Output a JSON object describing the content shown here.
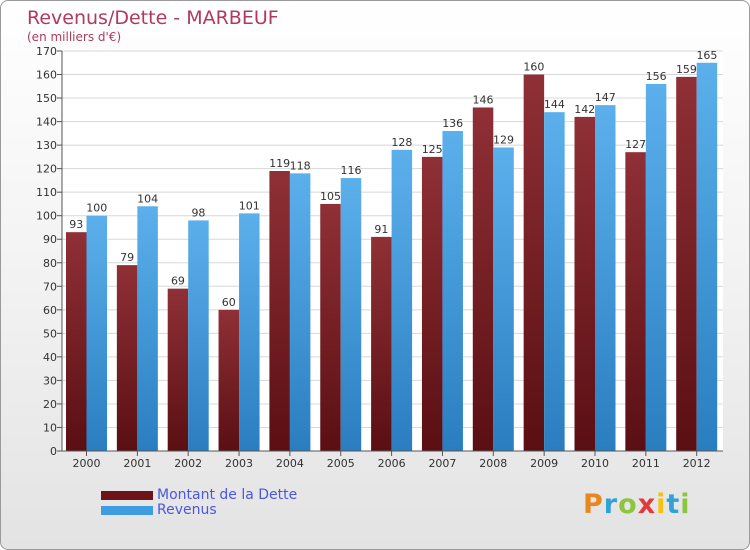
{
  "title": "Revenus/Dette - MARBEUF",
  "subtitle": "(en milliers d'€)",
  "logo_text": "Proxiti",
  "logo_colors": [
    "#e8871e",
    "#2fa3d8",
    "#8cc63f",
    "#e23a3a",
    "#f2c40c",
    "#2fa3d8",
    "#8cc63f"
  ],
  "chart_data": {
    "type": "bar",
    "categories": [
      "2000",
      "2001",
      "2002",
      "2003",
      "2004",
      "2005",
      "2006",
      "2007",
      "2008",
      "2009",
      "2010",
      "2011",
      "2012"
    ],
    "series": [
      {
        "name": "Montant de la Dette",
        "color": "#7a1f24",
        "values": [
          93,
          79,
          69,
          60,
          119,
          105,
          91,
          125,
          146,
          160,
          142,
          127,
          159
        ]
      },
      {
        "name": "Revenus",
        "color": "#3d9de0",
        "values": [
          100,
          104,
          98,
          101,
          118,
          116,
          128,
          136,
          129,
          144,
          147,
          156,
          165
        ]
      }
    ],
    "ylim": [
      0,
      170
    ],
    "ytick_step": 10,
    "grid": true,
    "legend": "bottom-left"
  }
}
